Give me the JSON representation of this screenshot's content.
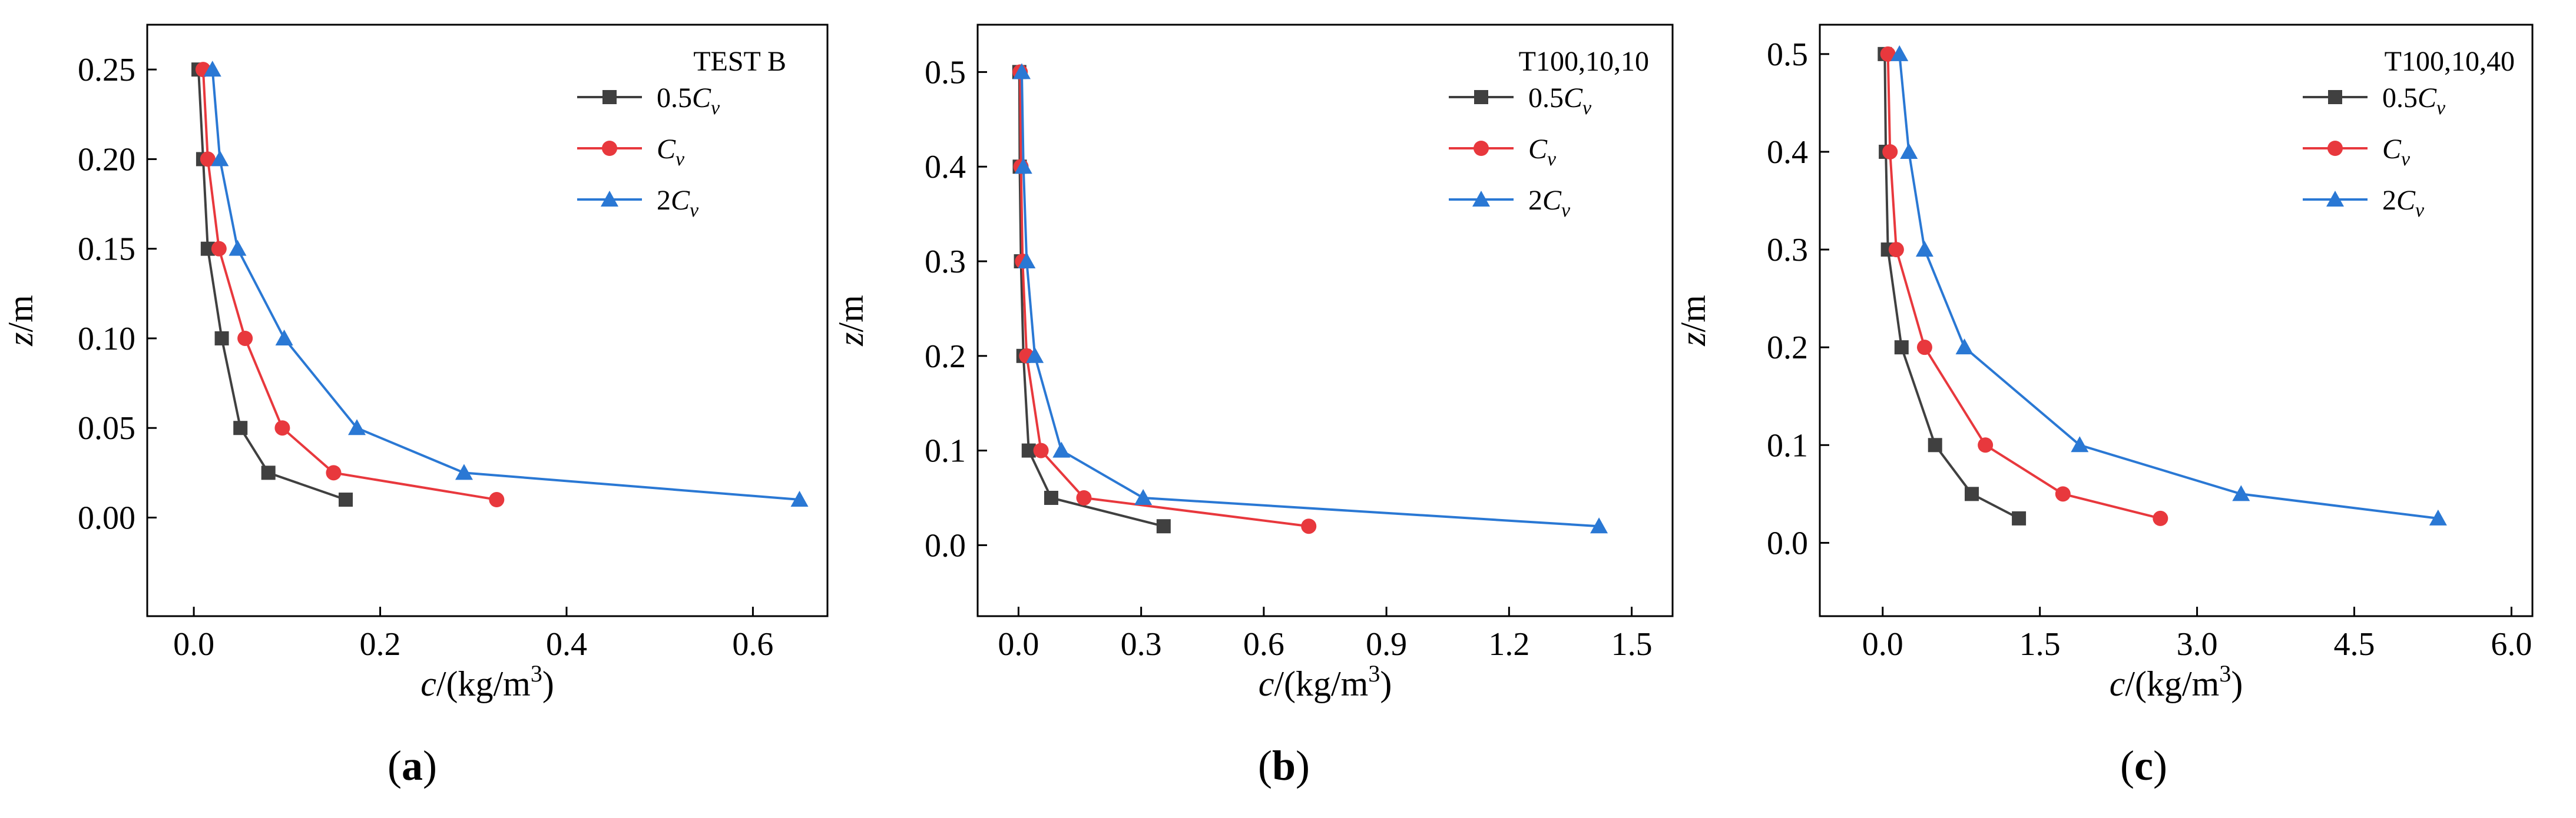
{
  "chart_data": [
    {
      "type": "line",
      "caption": "a",
      "title": "TEST B",
      "xlabel": "c/(kg/m3)",
      "ylabel": "z/m",
      "xlim": [
        -0.05,
        0.68
      ],
      "ylim": [
        -0.055,
        0.275
      ],
      "xticks": [
        0.0,
        0.2,
        0.4,
        0.6
      ],
      "xtick_labels": [
        "0.0",
        "0.2",
        "0.4",
        "0.6"
      ],
      "yticks": [
        0.0,
        0.05,
        0.1,
        0.15,
        0.2,
        0.25
      ],
      "ytick_labels": [
        "0.00",
        "0.05",
        "0.10",
        "0.15",
        "0.20",
        "0.25"
      ],
      "legend_position": "top-right",
      "series": [
        {
          "name": "0.5Cv",
          "label_main": "0.5",
          "label_italic": "C",
          "label_sub": "v",
          "color": "#404040",
          "marker": "square",
          "x": [
            0.163,
            0.08,
            0.05,
            0.03,
            0.015,
            0.01,
            0.005
          ],
          "y": [
            0.01,
            0.025,
            0.05,
            0.1,
            0.15,
            0.2,
            0.25
          ]
        },
        {
          "name": "Cv",
          "label_main": "",
          "label_italic": "C",
          "label_sub": "v",
          "color": "#e8383d",
          "marker": "circle",
          "x": [
            0.325,
            0.15,
            0.095,
            0.055,
            0.027,
            0.015,
            0.01
          ],
          "y": [
            0.01,
            0.025,
            0.05,
            0.1,
            0.15,
            0.2,
            0.25
          ]
        },
        {
          "name": "2Cv",
          "label_main": "2",
          "label_italic": "C",
          "label_sub": "v",
          "color": "#2a78d4",
          "marker": "triangle",
          "x": [
            0.65,
            0.29,
            0.175,
            0.097,
            0.047,
            0.028,
            0.02
          ],
          "y": [
            0.01,
            0.025,
            0.05,
            0.1,
            0.15,
            0.2,
            0.25
          ]
        }
      ]
    },
    {
      "type": "line",
      "caption": "b",
      "title": "T100,10,10",
      "xlabel": "c/(kg/m3)",
      "ylabel": "z/m",
      "xlim": [
        -0.1,
        1.6
      ],
      "ylim": [
        -0.075,
        0.55
      ],
      "xticks": [
        0.0,
        0.3,
        0.6,
        0.9,
        1.2,
        1.5
      ],
      "xtick_labels": [
        "0.0",
        "0.3",
        "0.6",
        "0.9",
        "1.2",
        "1.5"
      ],
      "yticks": [
        0.0,
        0.1,
        0.2,
        0.3,
        0.4,
        0.5
      ],
      "ytick_labels": [
        "0.0",
        "0.1",
        "0.2",
        "0.3",
        "0.4",
        "0.5"
      ],
      "legend_position": "top-right",
      "series": [
        {
          "name": "0.5Cv",
          "label_main": "0.5",
          "label_italic": "C",
          "label_sub": "v",
          "color": "#404040",
          "marker": "square",
          "x": [
            0.355,
            0.08,
            0.025,
            0.012,
            0.006,
            0.003,
            0.002
          ],
          "y": [
            0.02,
            0.05,
            0.1,
            0.2,
            0.3,
            0.4,
            0.5
          ]
        },
        {
          "name": "Cv",
          "label_main": "",
          "label_italic": "C",
          "label_sub": "v",
          "color": "#e8383d",
          "marker": "circle",
          "x": [
            0.71,
            0.16,
            0.055,
            0.02,
            0.01,
            0.006,
            0.004
          ],
          "y": [
            0.02,
            0.05,
            0.1,
            0.2,
            0.3,
            0.4,
            0.5
          ]
        },
        {
          "name": "2Cv",
          "label_main": "2",
          "label_italic": "C",
          "label_sub": "v",
          "color": "#2a78d4",
          "marker": "triangle",
          "x": [
            1.42,
            0.305,
            0.105,
            0.04,
            0.02,
            0.012,
            0.008
          ],
          "y": [
            0.02,
            0.05,
            0.1,
            0.2,
            0.3,
            0.4,
            0.5
          ]
        }
      ]
    },
    {
      "type": "line",
      "caption": "c",
      "title": "T100,10,40",
      "xlabel": "c/(kg/m3)",
      "ylabel": "z/m",
      "xlim": [
        -0.6,
        6.2
      ],
      "ylim": [
        -0.075,
        0.53
      ],
      "xticks": [
        0.0,
        1.5,
        3.0,
        4.5,
        6.0
      ],
      "xtick_labels": [
        "0.0",
        "1.5",
        "3.0",
        "4.5",
        "6.0"
      ],
      "yticks": [
        0.0,
        0.1,
        0.2,
        0.3,
        0.4,
        0.5
      ],
      "ytick_labels": [
        "0.0",
        "0.1",
        "0.2",
        "0.3",
        "0.4",
        "0.5"
      ],
      "legend_position": "top-right",
      "series": [
        {
          "name": "0.5Cv",
          "label_main": "0.5",
          "label_italic": "C",
          "label_sub": "v",
          "color": "#404040",
          "marker": "square",
          "x": [
            1.3,
            0.85,
            0.5,
            0.18,
            0.05,
            0.03,
            0.02
          ],
          "y": [
            0.025,
            0.05,
            0.1,
            0.2,
            0.3,
            0.4,
            0.5
          ]
        },
        {
          "name": "Cv",
          "label_main": "",
          "label_italic": "C",
          "label_sub": "v",
          "color": "#e8383d",
          "marker": "circle",
          "x": [
            2.65,
            1.72,
            0.98,
            0.4,
            0.13,
            0.07,
            0.05
          ],
          "y": [
            0.025,
            0.05,
            0.1,
            0.2,
            0.3,
            0.4,
            0.5
          ]
        },
        {
          "name": "2Cv",
          "label_main": "2",
          "label_italic": "C",
          "label_sub": "v",
          "color": "#2a78d4",
          "marker": "triangle",
          "x": [
            5.3,
            3.42,
            1.88,
            0.78,
            0.4,
            0.25,
            0.16
          ],
          "y": [
            0.025,
            0.05,
            0.1,
            0.2,
            0.3,
            0.4,
            0.5
          ]
        }
      ]
    }
  ]
}
